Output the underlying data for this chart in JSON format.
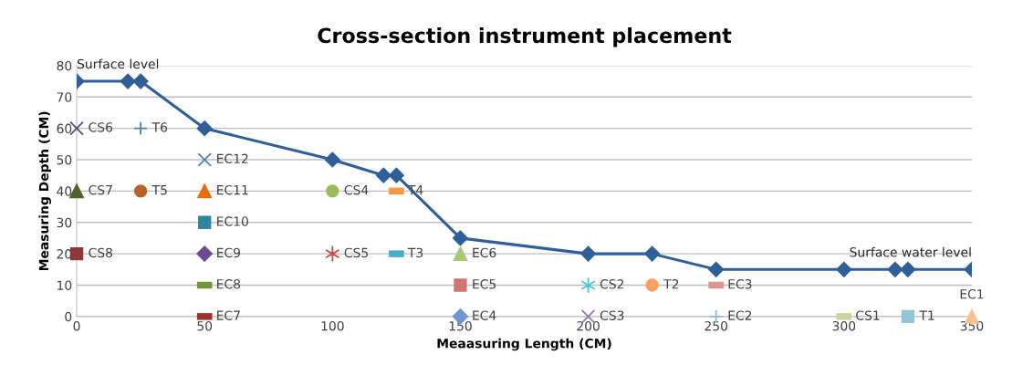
{
  "chart_data": {
    "type": "scatter",
    "title": "Cross-section instrument placement",
    "xlabel": "Meaasuring Length (CM)",
    "ylabel": "Measuring Depth (CM)",
    "xlim": [
      0,
      350
    ],
    "xticks": [
      0,
      50,
      100,
      150,
      200,
      250,
      300,
      350
    ],
    "ylim": [
      0,
      80
    ],
    "yticks": [
      0,
      10,
      20,
      30,
      40,
      50,
      60,
      70,
      80
    ],
    "grid": "y",
    "annotations": [
      {
        "text": "Surface level",
        "x": 0,
        "y": 75
      },
      {
        "text": "Surface water level",
        "x": 350,
        "y": 15
      }
    ],
    "series": [
      {
        "type": "line",
        "color": "#2f5f98",
        "marker": "diamond",
        "line_style": "solid",
        "x": [
          0,
          20,
          25,
          50,
          100,
          120,
          125,
          150,
          200,
          225,
          250,
          300,
          320,
          325,
          350
        ],
        "values": [
          75,
          75,
          75,
          60,
          50,
          45,
          45,
          25,
          20,
          20,
          15,
          15,
          15,
          15,
          15
        ]
      },
      {
        "name": "CS6",
        "color": "#604a7b",
        "marker": "x",
        "x": [
          0
        ],
        "values": [
          60
        ]
      },
      {
        "name": "T6",
        "color": "#4a7ebb",
        "marker": "plus",
        "x": [
          25
        ],
        "values": [
          60
        ]
      },
      {
        "name": "EC12",
        "color": "#4f81bd",
        "marker": "x",
        "x": [
          50
        ],
        "values": [
          50
        ]
      },
      {
        "name": "CS7",
        "color": "#4f6228",
        "marker": "triangle",
        "x": [
          0
        ],
        "values": [
          40
        ]
      },
      {
        "name": "T5",
        "color": "#b7642a",
        "marker": "circle",
        "x": [
          25
        ],
        "values": [
          40
        ]
      },
      {
        "name": "EC11",
        "color": "#e46c0a",
        "marker": "triangle",
        "x": [
          50
        ],
        "values": [
          40
        ]
      },
      {
        "name": "CS4",
        "color": "#9bbb59",
        "marker": "circle",
        "x": [
          100
        ],
        "values": [
          40
        ]
      },
      {
        "name": "T4",
        "color": "#f79646",
        "x": [
          125
        ],
        "values": [
          40
        ]
      },
      {
        "name": "EC10",
        "color": "#31859c",
        "marker": "square",
        "x": [
          50
        ],
        "values": [
          30
        ]
      },
      {
        "name": "CS8",
        "color": "#8c3836",
        "marker": "square",
        "x": [
          0
        ],
        "values": [
          20
        ]
      },
      {
        "name": "EC9",
        "color": "#6a4c93",
        "marker": "diamond",
        "x": [
          50
        ],
        "values": [
          20
        ]
      },
      {
        "name": "CS5",
        "color": "#c0504d",
        "marker": "cross",
        "x": [
          100
        ],
        "values": [
          20
        ]
      },
      {
        "name": "T3",
        "color": "#4bacc6",
        "x": [
          125
        ],
        "values": [
          20
        ]
      },
      {
        "name": "EC6",
        "color": "#a9c97a",
        "marker": "triangle",
        "x": [
          150
        ],
        "values": [
          20
        ]
      },
      {
        "name": "EC8",
        "color": "#77933c",
        "x": [
          50
        ],
        "values": [
          10
        ]
      },
      {
        "name": "EC5",
        "color": "#d07572",
        "marker": "square",
        "x": [
          150
        ],
        "values": [
          10
        ]
      },
      {
        "name": "CS2",
        "color": "#4bc6d0",
        "marker": "cross",
        "x": [
          200
        ],
        "values": [
          10
        ]
      },
      {
        "name": "T2",
        "color": "#f9a05e",
        "marker": "circle",
        "x": [
          225
        ],
        "values": [
          10
        ]
      },
      {
        "name": "EC3",
        "color": "#d99694",
        "x": [
          250
        ],
        "values": [
          10
        ]
      },
      {
        "name": "EC7",
        "color": "#a0302d",
        "x": [
          50
        ],
        "values": [
          0
        ]
      },
      {
        "name": "EC4",
        "color": "#7196cf",
        "marker": "diamond",
        "x": [
          150
        ],
        "values": [
          0
        ]
      },
      {
        "name": "CS3",
        "color": "#8e79b0",
        "marker": "x",
        "x": [
          200
        ],
        "values": [
          0
        ]
      },
      {
        "name": "EC2",
        "color": "#95b3d7",
        "marker": "plus",
        "x": [
          250
        ],
        "values": [
          0
        ]
      },
      {
        "name": "CS1",
        "color": "#c3d69b",
        "x": [
          300
        ],
        "values": [
          0
        ]
      },
      {
        "name": "T1",
        "color": "#93c5d6",
        "marker": "square",
        "x": [
          325
        ],
        "values": [
          0
        ]
      },
      {
        "name": "EC1",
        "color": "#fac090",
        "marker": "triangle",
        "x": [
          350
        ],
        "values": [
          0
        ]
      }
    ]
  }
}
